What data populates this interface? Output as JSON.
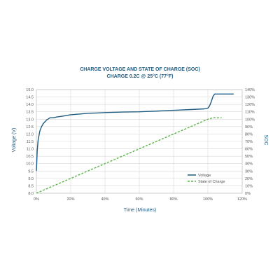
{
  "chart_data": {
    "type": "line",
    "title": "CHARGE VOLTAGE AND STATE OF CHARGE (SOC)",
    "subtitle": "CHARGE 0.2C @ 25°C (77°F)",
    "xlabel": "Time (Minutes)",
    "ylabel": "Voltage (V)",
    "y2label": "SOC",
    "x_ticks": [
      "0%",
      "20%",
      "40%",
      "60%",
      "80%",
      "100%",
      "120%"
    ],
    "xlim": [
      0,
      120
    ],
    "ylim": [
      8.0,
      15.0
    ],
    "y_ticks": [
      "8.0",
      "8.5",
      "9.0",
      "9.5",
      "10.0",
      "10.5",
      "11.0",
      "11.5",
      "12.0",
      "12.5",
      "13.0",
      "13.5",
      "14.0",
      "14.5",
      "15.0"
    ],
    "y2lim": [
      0,
      140
    ],
    "y2_ticks": [
      "0%",
      "10%",
      "20%",
      "30%",
      "40%",
      "50%",
      "60%",
      "70%",
      "80%",
      "90%",
      "100%",
      "110%",
      "120%",
      "130%",
      "140%"
    ],
    "grid": true,
    "legend_position": "bottom-right",
    "series": [
      {
        "name": "Voltage",
        "axis": "left",
        "color": "#1d5b82",
        "dash": false,
        "x": [
          0,
          0.5,
          1,
          2,
          3,
          4,
          6,
          8,
          10,
          12,
          15,
          20,
          25,
          30,
          35,
          40,
          50,
          60,
          70,
          80,
          90,
          98,
          100,
          101,
          102,
          103,
          104,
          106,
          110,
          115
        ],
        "y": [
          9.5,
          10.9,
          11.6,
          12.2,
          12.5,
          12.7,
          12.95,
          13.1,
          13.1,
          13.15,
          13.2,
          13.3,
          13.35,
          13.4,
          13.42,
          13.45,
          13.48,
          13.5,
          13.55,
          13.6,
          13.65,
          13.7,
          13.75,
          13.9,
          14.2,
          14.55,
          14.7,
          14.7,
          14.7,
          14.7
        ]
      },
      {
        "name": "State of Charge",
        "axis": "right",
        "color": "#5ab347",
        "dash": true,
        "x": [
          0,
          100,
          103,
          108
        ],
        "y": [
          0,
          100,
          102,
          102
        ]
      }
    ]
  }
}
